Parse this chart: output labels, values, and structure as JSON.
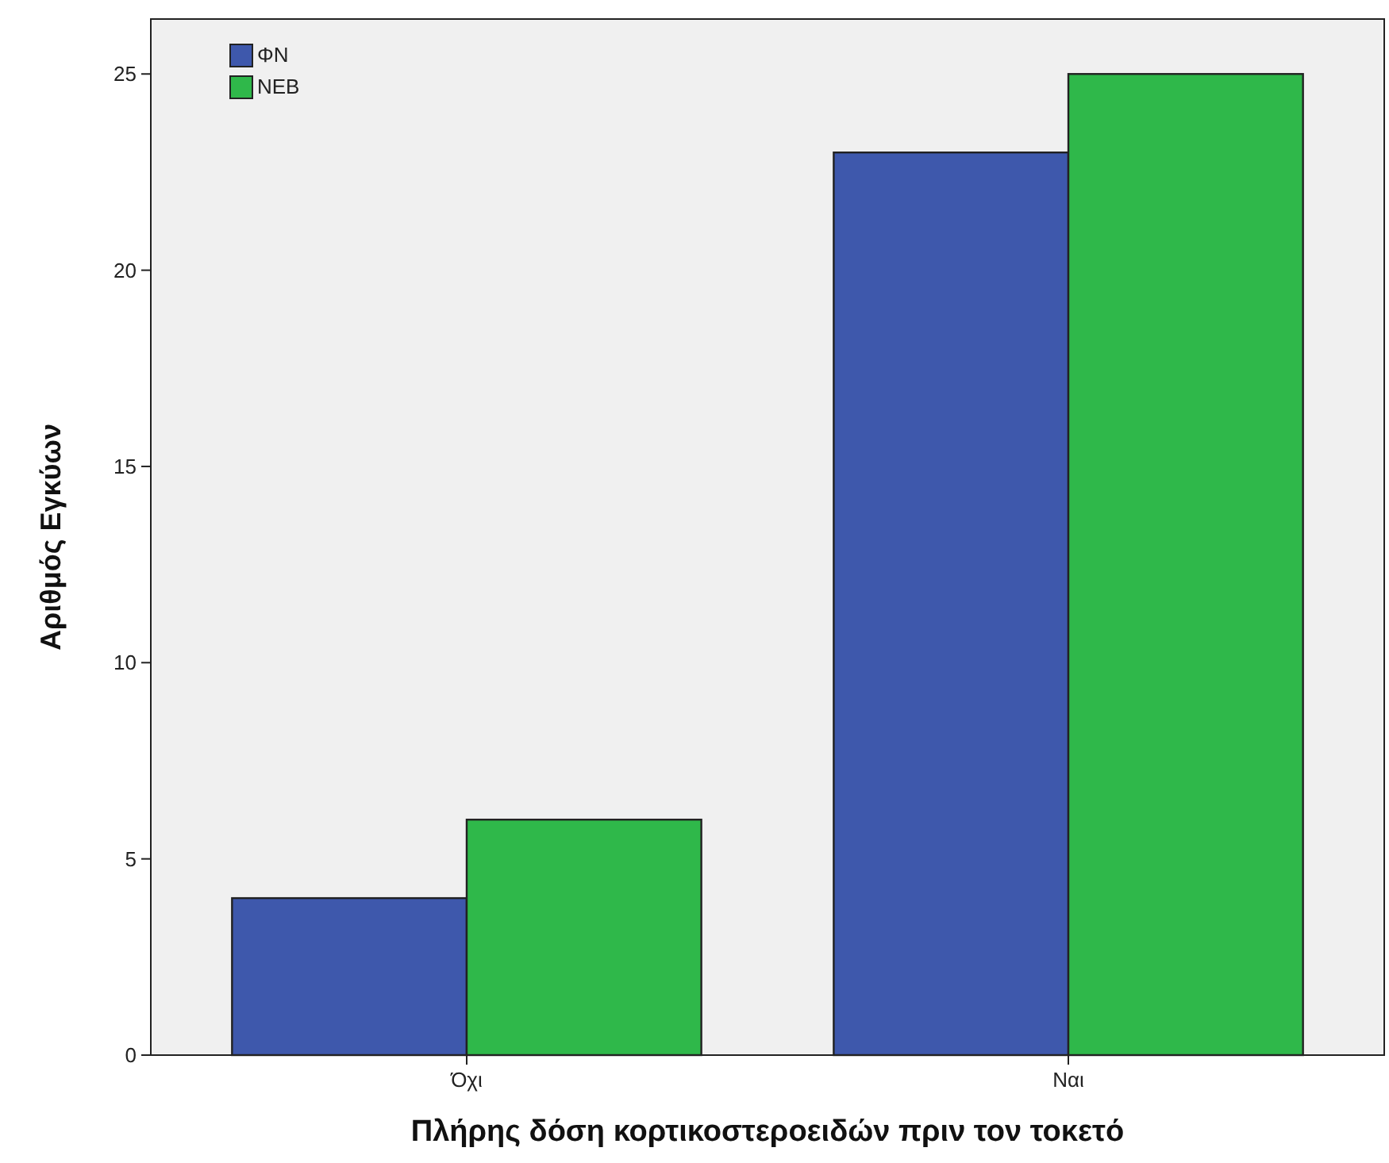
{
  "chart_data": {
    "type": "bar",
    "xlabel": "Πλήρης δόση κορτικοστεροειδών πριν τον τοκετό",
    "ylabel": "Αριθμός Εγκύων",
    "categories": [
      "Όχι",
      "Ναι"
    ],
    "series": [
      {
        "name": "ΦΝ",
        "color": "#3e58ac",
        "values": [
          4,
          23
        ]
      },
      {
        "name": "ΝΕΒ",
        "color": "#2fb84a",
        "values": [
          6,
          25
        ]
      }
    ],
    "ylim": [
      0,
      26.4
    ],
    "yticks": [
      0,
      5,
      10,
      15,
      20,
      25
    ],
    "grid": false,
    "legend": "top left"
  }
}
